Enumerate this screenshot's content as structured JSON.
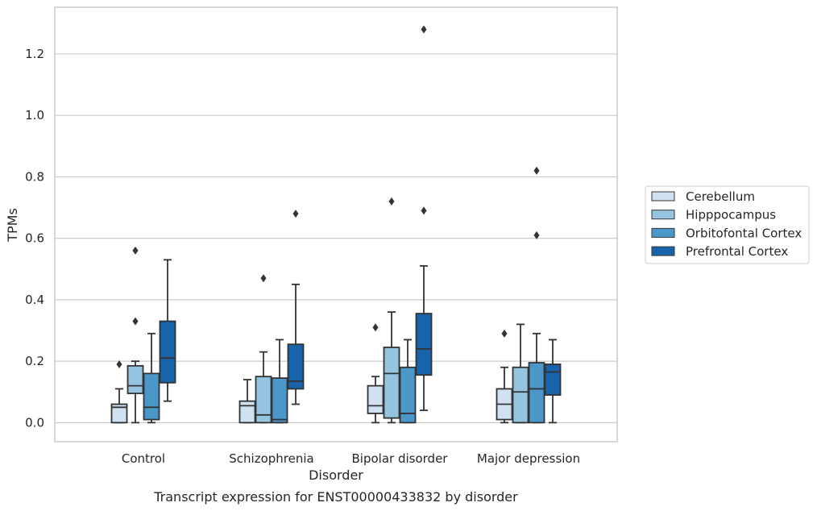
{
  "chart_data": {
    "type": "box",
    "caption": "Transcript expression for ENST00000433832 by disorder",
    "xlabel": "Disorder",
    "ylabel": "TPMs",
    "ylim": [
      -0.062,
      1.352
    ],
    "yticks": [
      "0.0",
      "0.2",
      "0.4",
      "0.6",
      "0.8",
      "1.0",
      "1.2"
    ],
    "grid": "horizontal",
    "legend_position": "right",
    "categories": [
      "Control",
      "Schizophrenia",
      "Bipolar disorder",
      "Major depression"
    ],
    "series": [
      {
        "name": "Cerebellum",
        "color": "#d0e1f2",
        "boxes": [
          {
            "whislo": 0.0,
            "q1": 0.0,
            "med": 0.05,
            "q3": 0.06,
            "whishi": 0.11,
            "fliers": [
              0.19
            ]
          },
          {
            "whislo": 0.0,
            "q1": 0.0,
            "med": 0.055,
            "q3": 0.07,
            "whishi": 0.14,
            "fliers": []
          },
          {
            "whislo": 0.0,
            "q1": 0.03,
            "med": 0.055,
            "q3": 0.12,
            "whishi": 0.15,
            "fliers": [
              0.31
            ]
          },
          {
            "whislo": 0.0,
            "q1": 0.01,
            "med": 0.06,
            "q3": 0.11,
            "whishi": 0.18,
            "fliers": [
              0.29
            ]
          }
        ]
      },
      {
        "name": "Hipppocampus",
        "color": "#94c4df",
        "boxes": [
          {
            "whislo": 0.0,
            "q1": 0.095,
            "med": 0.12,
            "q3": 0.185,
            "whishi": 0.2,
            "fliers": [
              0.33,
              0.56
            ]
          },
          {
            "whislo": 0.0,
            "q1": 0.0,
            "med": 0.025,
            "q3": 0.15,
            "whishi": 0.23,
            "fliers": [
              0.47
            ]
          },
          {
            "whislo": 0.0,
            "q1": 0.015,
            "med": 0.16,
            "q3": 0.245,
            "whishi": 0.36,
            "fliers": [
              0.72
            ]
          },
          {
            "whislo": 0.0,
            "q1": 0.0,
            "med": 0.1,
            "q3": 0.18,
            "whishi": 0.32,
            "fliers": []
          }
        ]
      },
      {
        "name": "Orbitofontal Cortex",
        "color": "#4a98c9",
        "boxes": [
          {
            "whislo": 0.0,
            "q1": 0.01,
            "med": 0.05,
            "q3": 0.16,
            "whishi": 0.29,
            "fliers": []
          },
          {
            "whislo": 0.0,
            "q1": 0.0,
            "med": 0.01,
            "q3": 0.145,
            "whishi": 0.27,
            "fliers": []
          },
          {
            "whislo": 0.0,
            "q1": 0.0,
            "med": 0.03,
            "q3": 0.18,
            "whishi": 0.27,
            "fliers": []
          },
          {
            "whislo": 0.0,
            "q1": 0.0,
            "med": 0.11,
            "q3": 0.195,
            "whishi": 0.29,
            "fliers": [
              0.61,
              0.82
            ]
          }
        ]
      },
      {
        "name": "Prefrontal Cortex",
        "color": "#1764ab",
        "boxes": [
          {
            "whislo": 0.07,
            "q1": 0.13,
            "med": 0.21,
            "q3": 0.33,
            "whishi": 0.53,
            "fliers": []
          },
          {
            "whislo": 0.06,
            "q1": 0.11,
            "med": 0.135,
            "q3": 0.255,
            "whishi": 0.45,
            "fliers": [
              0.68
            ]
          },
          {
            "whislo": 0.04,
            "q1": 0.155,
            "med": 0.24,
            "q3": 0.355,
            "whishi": 0.51,
            "fliers": [
              0.69,
              1.28
            ]
          },
          {
            "whislo": 0.0,
            "q1": 0.09,
            "med": 0.165,
            "q3": 0.19,
            "whishi": 0.27,
            "fliers": []
          }
        ]
      }
    ]
  }
}
